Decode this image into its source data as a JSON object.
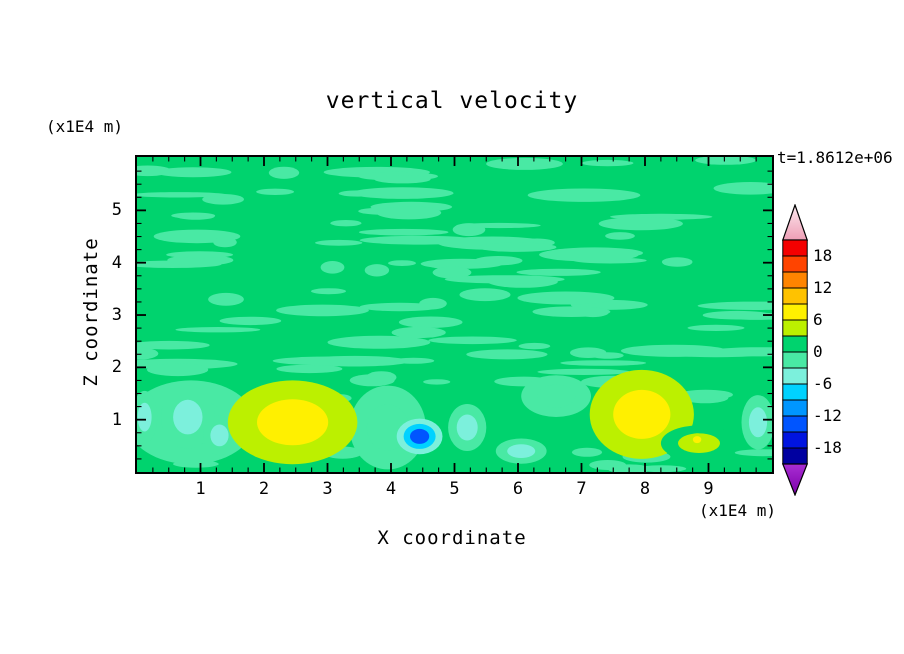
{
  "header": {
    "title": "vertical velocity",
    "time_label": "t=1.8612e+06"
  },
  "axes": {
    "x": {
      "label": "X coordinate",
      "units": "(x1E4 m)",
      "min": 0,
      "max": 10,
      "major_ticks": [
        1,
        2,
        3,
        4,
        5,
        6,
        7,
        8,
        9
      ],
      "minor_step": 0.25
    },
    "z": {
      "label": "Z coordinate",
      "units": "(x1E4 m)",
      "min": 0,
      "max": 6.02,
      "major_ticks": [
        1,
        2,
        3,
        4,
        5
      ],
      "minor_step": 0.25
    }
  },
  "colorbar": {
    "labels": [
      "18",
      "12",
      "6",
      "0",
      "-6",
      "-12",
      "-18"
    ],
    "band_step": 3,
    "vmax": 21,
    "band_colors_top_to_bottom": [
      "#F40000",
      "#FF4400",
      "#FF8400",
      "#FFC200",
      "#FFF000",
      "#BCF000",
      "#00D36E",
      "#49E9A4",
      "#7CF0DC",
      "#00D2FF",
      "#0096FF",
      "#0055FF",
      "#0014E0",
      "#0000A0"
    ],
    "top_arrow_colors": [
      "#FCE8EE",
      "#EE9FB6"
    ],
    "bottom_arrow_colors": [
      "#A92ED4",
      "#7C00A8"
    ]
  },
  "chart_data": {
    "type": "heatmap",
    "title": "vertical velocity",
    "xlabel": "X coordinate",
    "ylabel": "Z coordinate",
    "x_units": "(x1E4 m)",
    "z_units": "(x1E4 m)",
    "time": "t=1.8612e+06",
    "xlim": [
      0,
      10
    ],
    "zlim": [
      0,
      6.02
    ],
    "contour_interval": 3,
    "levels_labeled": [
      -18,
      -12,
      -6,
      0,
      6,
      12,
      18
    ],
    "background_value": 1.5,
    "field_description": "Filled contour field of vertical velocity; mostly near-zero (0..3 band green) with weak negative mottling aloft and stronger up/downdraft cells below z=1.5e4 m",
    "texture": [
      {
        "seed": 11,
        "count": 95,
        "x_range": [
          0,
          10
        ],
        "z_range": [
          1.7,
          6.0
        ],
        "rx": [
          0.18,
          0.95
        ],
        "rz": [
          0.05,
          0.13
        ],
        "value": -1.5
      },
      {
        "seed": 23,
        "count": 14,
        "x_range": [
          0,
          10
        ],
        "z_range": [
          0.05,
          1.55
        ],
        "rx": [
          0.12,
          0.5
        ],
        "rz": [
          0.05,
          0.12
        ],
        "value": -1.5
      }
    ],
    "features": [
      {
        "x": 0.85,
        "z": 0.95,
        "rx": 1.0,
        "rz": 0.8,
        "value": -2.2
      },
      {
        "x": 3.95,
        "z": 0.85,
        "rx": 0.6,
        "rz": 0.8,
        "value": -2.2
      },
      {
        "x": 6.6,
        "z": 1.45,
        "rx": 0.55,
        "rz": 0.4,
        "value": -2.2
      },
      {
        "x": 0.12,
        "z": 1.05,
        "rx": 0.2,
        "rz": 0.5,
        "value": -4
      },
      {
        "x": 0.8,
        "z": 1.05,
        "rx": 0.42,
        "rz": 0.6,
        "value": -4.5
      },
      {
        "x": 1.3,
        "z": 0.7,
        "rx": 0.26,
        "rz": 0.38,
        "value": -4
      },
      {
        "x": 2.45,
        "z": 0.95,
        "rx": 1.02,
        "rz": 0.8,
        "value": 8
      },
      {
        "x": 4.45,
        "z": 0.68,
        "rx": 0.36,
        "rz": 0.34,
        "value": -13
      },
      {
        "x": 5.2,
        "z": 0.85,
        "rx": 0.3,
        "rz": 0.45,
        "value": -4.5
      },
      {
        "x": 6.05,
        "z": 0.4,
        "rx": 0.4,
        "rz": 0.24,
        "value": -5
      },
      {
        "x": 7.95,
        "z": 1.1,
        "rx": 0.82,
        "rz": 0.85,
        "value": 7.5
      },
      {
        "x": 8.85,
        "z": 0.55,
        "rx": 0.6,
        "rz": 0.34,
        "value": 5.5
      },
      {
        "x": 8.82,
        "z": 0.62,
        "rx": 0.12,
        "rz": 0.12,
        "value": 7.5
      },
      {
        "x": 9.78,
        "z": 0.95,
        "rx": 0.26,
        "rz": 0.52,
        "value": -4
      }
    ]
  }
}
